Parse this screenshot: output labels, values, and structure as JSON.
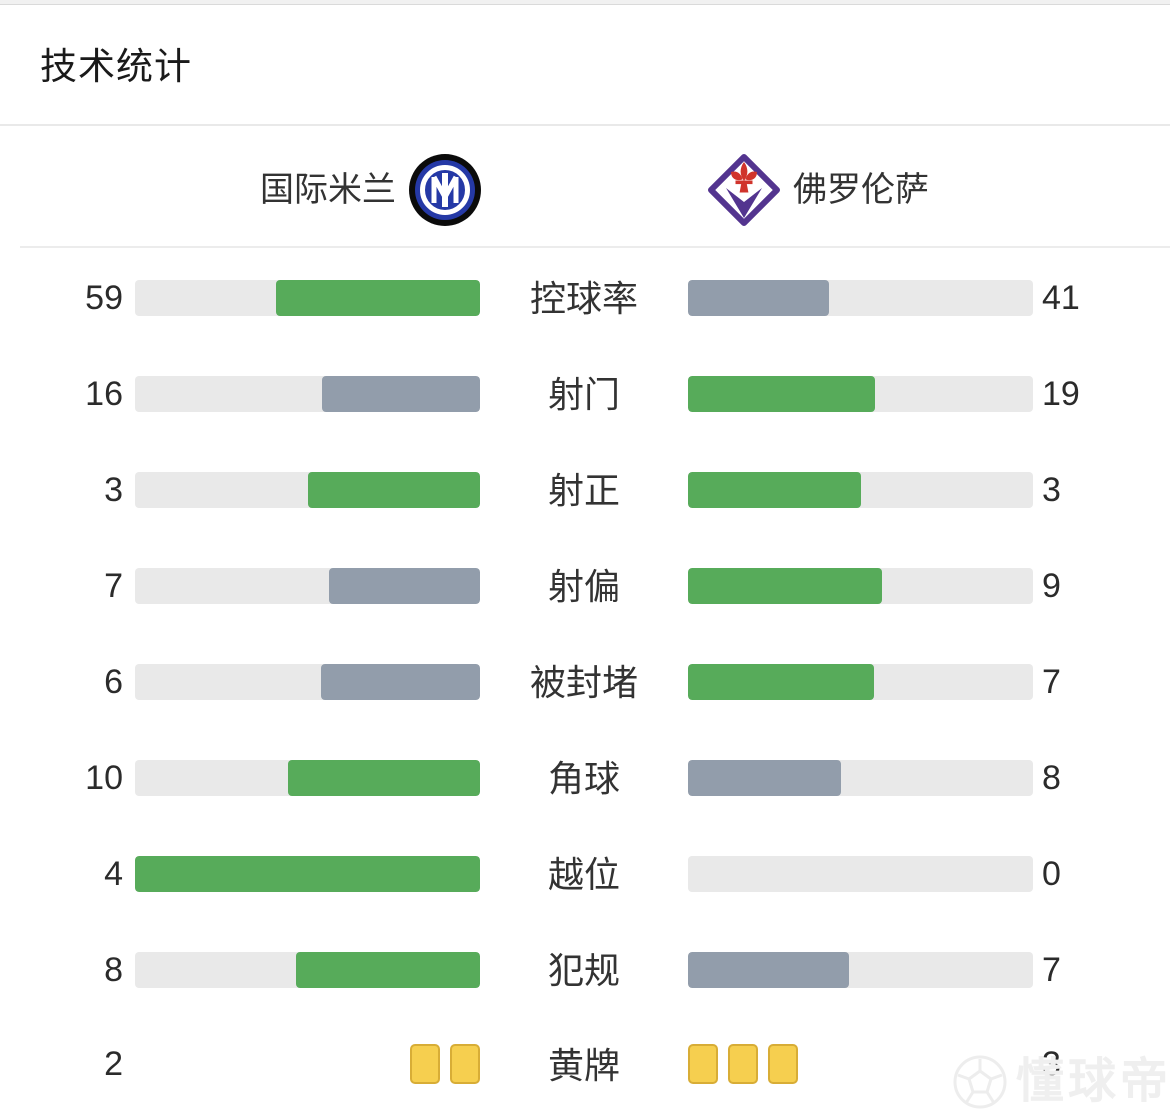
{
  "title": "技术统计",
  "teams": {
    "home": {
      "name": "国际米兰",
      "logo_icon": "inter-milan-crest"
    },
    "away": {
      "name": "佛罗伦萨",
      "logo_icon": "fiorentina-crest"
    }
  },
  "colors": {
    "win_fill": "#57ab5a",
    "lose_fill": "#929dab",
    "track": "#e9e9e9",
    "card_fill": "#f6cf4f",
    "card_border": "#d8ad36",
    "watermark": "#efefef"
  },
  "stats": {
    "rows": [
      {
        "type": "bar",
        "label": "控球率",
        "home": 59,
        "away": 41
      },
      {
        "type": "bar",
        "label": "射门",
        "home": 16,
        "away": 19
      },
      {
        "type": "bar",
        "label": "射正",
        "home": 3,
        "away": 3
      },
      {
        "type": "bar",
        "label": "射偏",
        "home": 7,
        "away": 9
      },
      {
        "type": "bar",
        "label": "被封堵",
        "home": 6,
        "away": 7
      },
      {
        "type": "bar",
        "label": "角球",
        "home": 10,
        "away": 8
      },
      {
        "type": "bar",
        "label": "越位",
        "home": 4,
        "away": 0
      },
      {
        "type": "bar",
        "label": "犯规",
        "home": 8,
        "away": 7
      },
      {
        "type": "cards",
        "label": "黄牌",
        "home": 2,
        "away": 3
      }
    ]
  },
  "watermark": {
    "text": "懂球帝",
    "icon": "soccer-ball-icon"
  },
  "chart_data": {
    "type": "bar",
    "variant": "mirrored-horizontal-comparison",
    "title": "技术统计",
    "categories": [
      "控球率",
      "射门",
      "射正",
      "射偏",
      "被封堵",
      "角球",
      "越位",
      "犯规",
      "黄牌"
    ],
    "series": [
      {
        "name": "国际米兰",
        "values": [
          59,
          16,
          3,
          7,
          6,
          10,
          4,
          8,
          2
        ]
      },
      {
        "name": "佛罗伦萨",
        "values": [
          41,
          19,
          3,
          9,
          7,
          8,
          0,
          7,
          3
        ]
      }
    ],
    "encoding_notes": "each bar fill fraction = value/(home+away); higher value rendered green (#57ab5a), lower rendered slate (#929dab), ties both green; 黄牌 row rendered as yellow card glyphs instead of bars",
    "legend_position": "top as team headers with crests",
    "grid": false
  }
}
